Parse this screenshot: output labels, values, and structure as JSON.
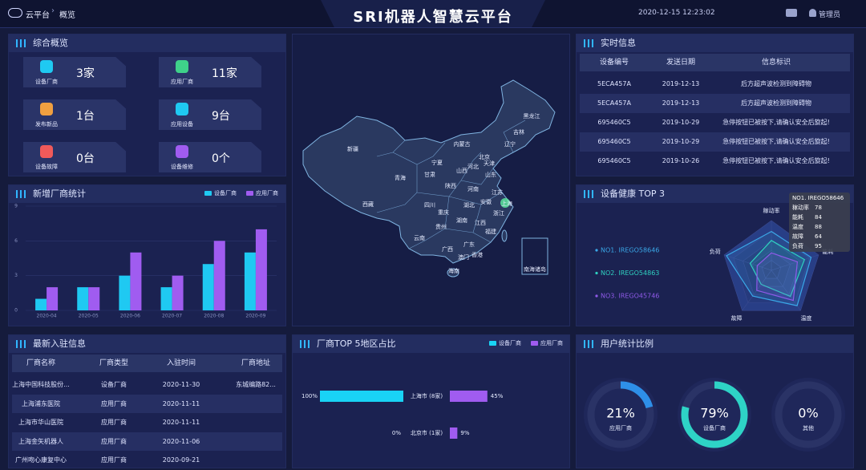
{
  "header": {
    "breadcrumb": [
      "云平台",
      "概览"
    ],
    "title": "SRI机器人智慧云平台",
    "datetime": "2020-12-15 12:23:02",
    "user": "管理员"
  },
  "overview": {
    "title": "综合概览",
    "items": [
      {
        "label": "设备厂商",
        "value": "3家"
      },
      {
        "label": "应用厂商",
        "value": "11家"
      },
      {
        "label": "发布新品",
        "value": "1台"
      },
      {
        "label": "应用设备",
        "value": "9台"
      },
      {
        "label": "设备故障",
        "value": "0台"
      },
      {
        "label": "设备维修",
        "value": "0个"
      }
    ]
  },
  "realtime": {
    "title": "实时信息",
    "columns": [
      "设备编号",
      "发送日期",
      "信息标识"
    ],
    "rows": [
      [
        "5ECA457A",
        "2019-12-13",
        "后方超声波检测到障碍物"
      ],
      [
        "5ECA457A",
        "2019-12-13",
        "后方超声波检测到障碍物"
      ],
      [
        "695460C5",
        "2019-10-29",
        "急停按钮已被按下,请确认安全后旋起!"
      ],
      [
        "695460C5",
        "2019-10-29",
        "急停按钮已被按下,请确认安全后旋起!"
      ],
      [
        "695460C5",
        "2019-10-26",
        "急停按钮已被按下,请确认安全后旋起!"
      ]
    ]
  },
  "entries": {
    "title": "最新入驻信息",
    "columns": [
      "厂商名称",
      "厂商类型",
      "入驻时间",
      "厂商地址"
    ],
    "rows": [
      [
        "上海中国科技股份...",
        "设备厂商",
        "2020-11-30",
        "东城编路82..."
      ],
      [
        "上海浦东医院",
        "应用厂商",
        "2020-11-11"
      ],
      [
        "上海市华山医院",
        "应用厂商",
        "2020-11-11"
      ],
      [
        "上海金矢机器人",
        "应用厂商",
        "2020-11-06"
      ],
      [
        "广州吻心康复中心",
        "应用厂商",
        "2020-09-21"
      ]
    ]
  },
  "map": {
    "provinces": [
      "新疆",
      "西藏",
      "青海",
      "甘肃",
      "内蒙古",
      "黑龙江",
      "吉林",
      "辽宁",
      "北京",
      "天津",
      "河北",
      "山西",
      "陕西",
      "宁夏",
      "山东",
      "河南",
      "四川",
      "重庆",
      "湖北",
      "安徽",
      "江苏",
      "上海",
      "浙江",
      "湖南",
      "江西",
      "贵州",
      "云南",
      "广西",
      "广东",
      "福建",
      "澳门",
      "香港",
      "海南",
      "南海诸岛"
    ]
  },
  "chart_data": [
    {
      "type": "bar",
      "title": "新增厂商统计",
      "categories": [
        "2020-04",
        "2020-05",
        "2020-06",
        "2020-07",
        "2020-08",
        "2020-09"
      ],
      "series": [
        {
          "name": "设备厂商",
          "color": "#1fc9f2",
          "values": [
            1,
            2,
            3,
            2,
            4,
            5
          ]
        },
        {
          "name": "应用厂商",
          "color": "#a05cf0",
          "values": [
            2,
            2,
            5,
            3,
            6,
            7
          ]
        }
      ],
      "ylim": [
        0,
        9
      ],
      "yticks": [
        0,
        3,
        6,
        9
      ],
      "grid": true
    },
    {
      "type": "radar",
      "title": "设备健康 TOP 3",
      "indicators": [
        "稼动率",
        "能耗",
        "温度",
        "故障",
        "负荷"
      ],
      "rlim": [
        0,
        100
      ],
      "series": [
        {
          "name": "NO1. IREGO58646",
          "color": "#3aa8e8",
          "values": [
            78,
            84,
            88,
            64,
            95
          ]
        },
        {
          "name": "NO2. IREGO54863",
          "color": "#2fd1c0",
          "values": [
            60,
            70,
            65,
            35,
            45
          ]
        },
        {
          "name": "NO3. IREGO45746",
          "color": "#8f5ae8",
          "values": [
            35,
            55,
            75,
            50,
            30
          ]
        }
      ]
    },
    {
      "type": "butterfly",
      "title": "厂商TOP 5地区占比",
      "categories": [
        "上海市 (8家)",
        "北京市 (1家)"
      ],
      "series": [
        {
          "name": "设备厂商",
          "color": "#19d3f5",
          "values": [
            100,
            0
          ],
          "value_labels": [
            "100%",
            "0%"
          ]
        },
        {
          "name": "应用厂商",
          "color": "#a05cf0",
          "values": [
            45,
            9
          ],
          "value_labels": [
            "45%",
            "9%"
          ]
        }
      ],
      "xlim": [
        0,
        100
      ]
    },
    {
      "type": "donut",
      "title": "用户统计比例",
      "categories": [
        "应用厂商",
        "设备厂商",
        "其他"
      ],
      "values": [
        21,
        79,
        0
      ],
      "value_labels": [
        "21%",
        "79%",
        "0%"
      ],
      "colors": [
        "#2e8fe8",
        "#2ed3c6",
        "#6b7bb8"
      ]
    }
  ]
}
